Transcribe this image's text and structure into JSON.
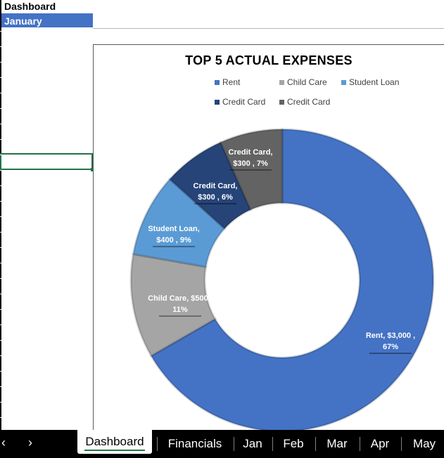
{
  "sheet": {
    "title": "Dashboard",
    "month": "January"
  },
  "chart_data": {
    "type": "pie",
    "subtype": "donut",
    "title": "TOP 5 ACTUAL EXPENSES",
    "categories": [
      "Rent",
      "Child Care",
      "Student Loan",
      "Credit Card",
      "Credit Card"
    ],
    "values": [
      3000,
      500,
      400,
      300,
      300
    ],
    "percentages": [
      67,
      11,
      9,
      6,
      7
    ],
    "colors": [
      "#4472c4",
      "#a5a5a5",
      "#5b9bd5",
      "#264478",
      "#636363"
    ],
    "data_labels": [
      [
        "Rent,  $3,000 ,",
        "67%"
      ],
      [
        "Child Care,  $500 ,",
        "11%"
      ],
      [
        "Student Loan,",
        "$400 , 9%"
      ],
      [
        "Credit Card,",
        "$300 , 6%"
      ],
      [
        "Credit Card,",
        "$300 , 7%"
      ]
    ],
    "legend_position": "top"
  },
  "tabs": {
    "prev_icon": "‹",
    "next_icon": "›",
    "items": [
      "Dashboard",
      "Financials",
      "Jan",
      "Feb",
      "Mar",
      "Apr",
      "May"
    ],
    "active": "Dashboard"
  }
}
